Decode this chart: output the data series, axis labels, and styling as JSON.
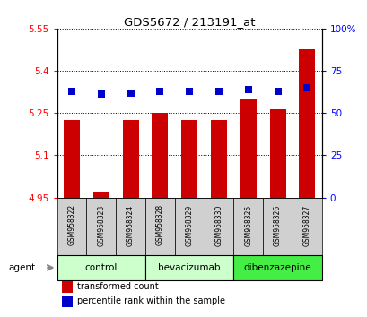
{
  "title": "GDS5672 / 213191_at",
  "samples": [
    "GSM958322",
    "GSM958323",
    "GSM958324",
    "GSM958328",
    "GSM958329",
    "GSM958330",
    "GSM958325",
    "GSM958326",
    "GSM958327"
  ],
  "bar_values": [
    5.225,
    4.97,
    5.225,
    5.25,
    5.225,
    5.225,
    5.3,
    5.265,
    5.475
  ],
  "percentile_values": [
    63,
    61,
    62,
    63,
    63,
    63,
    64,
    63,
    65
  ],
  "ylim_left": [
    4.95,
    5.55
  ],
  "ylim_right": [
    0,
    100
  ],
  "yticks_left": [
    4.95,
    5.1,
    5.25,
    5.4,
    5.55
  ],
  "yticks_right": [
    0,
    25,
    50,
    75,
    100
  ],
  "ytick_labels_right": [
    "0",
    "25",
    "50",
    "75",
    "100%"
  ],
  "bar_color": "#cc0000",
  "dot_color": "#0000cc",
  "groups": [
    {
      "label": "control",
      "indices": [
        0,
        1,
        2
      ],
      "color": "#ccffcc"
    },
    {
      "label": "bevacizumab",
      "indices": [
        3,
        4,
        5
      ],
      "color": "#ccffcc"
    },
    {
      "label": "dibenzazepine",
      "indices": [
        6,
        7,
        8
      ],
      "color": "#44ee44"
    }
  ],
  "agent_label": "agent",
  "legend_bar_label": "transformed count",
  "legend_dot_label": "percentile rank within the sample",
  "bar_width": 0.55,
  "dot_size": 28,
  "sample_bg": "#d0d0d0"
}
